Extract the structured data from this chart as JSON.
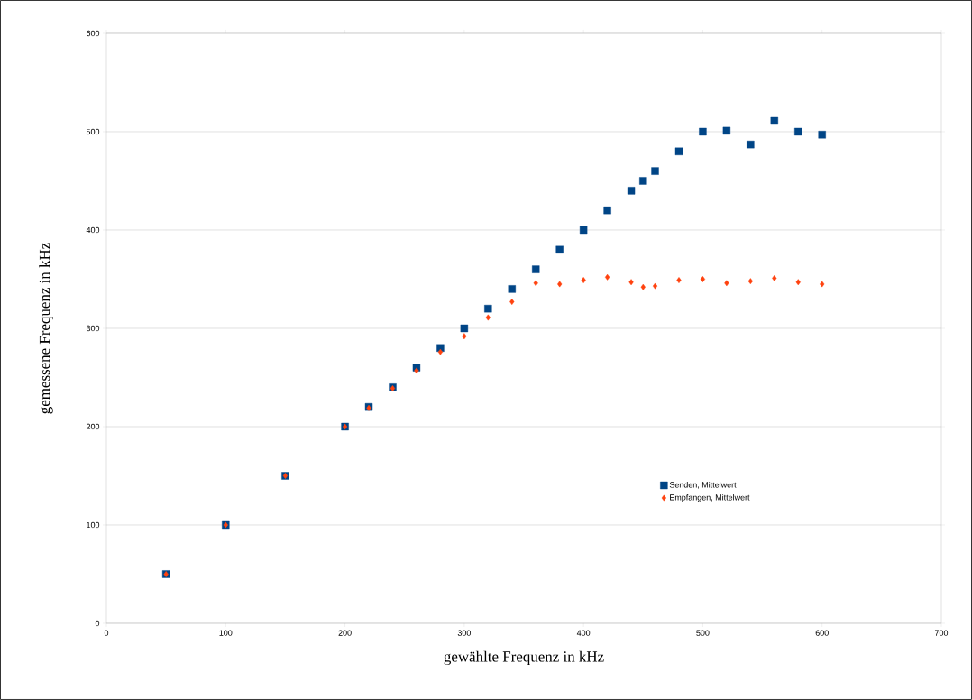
{
  "chart_data": {
    "type": "scatter",
    "xlabel": "gewählte Frequenz in kHz",
    "ylabel": "gemessene Frequenz in kHz",
    "x": [
      50,
      100,
      150,
      200,
      220,
      240,
      260,
      280,
      300,
      320,
      340,
      360,
      380,
      400,
      420,
      440,
      450,
      460,
      480,
      500,
      520,
      540,
      560,
      580,
      600
    ],
    "series": [
      {
        "name": "Senden, Mittelwert",
        "color": "#004586",
        "marker": "square",
        "values": [
          50,
          100,
          150,
          200,
          220,
          240,
          260,
          280,
          300,
          320,
          340,
          360,
          380,
          400,
          420,
          440,
          450,
          460,
          480,
          500,
          501,
          487,
          511,
          500,
          497
        ]
      },
      {
        "name": "Empfangen, Mittelwert",
        "color": "#ff420e",
        "marker": "diamond",
        "values": [
          50,
          100,
          150,
          200,
          219,
          239,
          257,
          276,
          292,
          311,
          327,
          346,
          345,
          349,
          352,
          347,
          342,
          343,
          349,
          350,
          346,
          348,
          351,
          347,
          345
        ]
      }
    ],
    "xlim": [
      0,
      700
    ],
    "xticks": [
      0,
      100,
      200,
      300,
      400,
      500,
      600,
      700
    ],
    "ylim": [
      0,
      600
    ],
    "yticks": [
      0,
      100,
      200,
      300,
      400,
      500,
      600
    ],
    "grid": "y",
    "legend": "bottom right"
  }
}
